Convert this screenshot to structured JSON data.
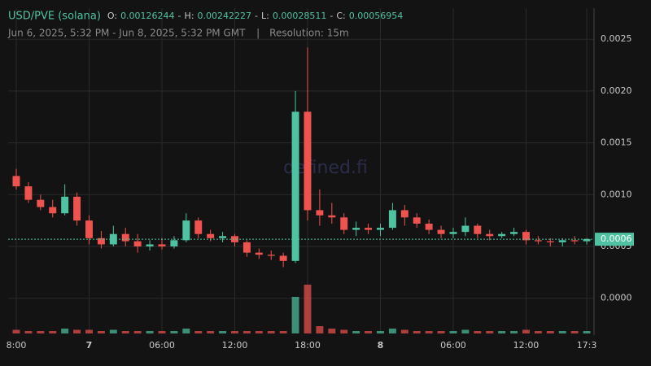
{
  "chart_data": {
    "type": "candlestick",
    "title": "USD/PVE (solana)",
    "ohlc": [
      {
        "label": "O:",
        "value": 0.00126244
      },
      {
        "label": "H:",
        "value": 0.00242227
      },
      {
        "label": "L:",
        "value": 0.00028511
      },
      {
        "label": "C:",
        "value": 0.00056954
      }
    ],
    "separator": "-",
    "subtitle": "Jun 6, 2025, 5:32 PM - Jun 8, 2025, 5:32 PM GMT",
    "divider": "|",
    "resolution": "Resolution: 15m",
    "watermark": "defined.fi",
    "price_label": "0.0006",
    "up_color": "#4fc3a1",
    "down_color": "#ef5350",
    "grid": true,
    "xlim": [
      17.33,
      65.6
    ],
    "xticks": [
      {
        "value": 18,
        "label": "8:00"
      },
      {
        "value": 24,
        "label": "7"
      },
      {
        "value": 30,
        "label": "06:00"
      },
      {
        "value": 36,
        "label": "12:00"
      },
      {
        "value": 42,
        "label": "18:00"
      },
      {
        "value": 48,
        "label": "8"
      },
      {
        "value": 54,
        "label": "06:00"
      },
      {
        "value": 60,
        "label": "12:00"
      },
      {
        "value": 65,
        "label": "17:3"
      }
    ],
    "ylim": [
      -0.00034,
      0.0028
    ],
    "yticks": [
      {
        "value": 0,
        "label": "0.0000"
      },
      {
        "value": 0.0005,
        "label": "0.0005"
      },
      {
        "value": 0.001,
        "label": "0.0010"
      },
      {
        "value": 0.0015,
        "label": "0.0015"
      },
      {
        "value": 0.002,
        "label": "0.0020"
      },
      {
        "value": 0.0025,
        "label": "0.0025"
      }
    ],
    "x": [
      18,
      19,
      20,
      21,
      22,
      23,
      24,
      25,
      26,
      27,
      28,
      29,
      30,
      31,
      32,
      33,
      34,
      35,
      36,
      37,
      38,
      39,
      40,
      41,
      42,
      43,
      44,
      45,
      46,
      47,
      48,
      49,
      50,
      51,
      52,
      53,
      54,
      55,
      56,
      57,
      58,
      59,
      60,
      61,
      62,
      63,
      64,
      65
    ],
    "open": [
      0.00118,
      0.00108,
      0.00095,
      0.00088,
      0.00082,
      0.00098,
      0.00075,
      0.00058,
      0.00052,
      0.00062,
      0.00055,
      0.0005,
      0.00052,
      0.0005,
      0.00056,
      0.00075,
      0.00062,
      0.00058,
      0.0006,
      0.00054,
      0.00044,
      0.00042,
      0.00041,
      0.00036,
      0.0018,
      0.00085,
      0.0008,
      0.00078,
      0.00066,
      0.00068,
      0.00066,
      0.00068,
      0.00085,
      0.00078,
      0.00072,
      0.00066,
      0.00062,
      0.00064,
      0.0007,
      0.00062,
      0.0006,
      0.00062,
      0.00064,
      0.00056,
      0.00055,
      0.00054,
      0.00056,
      0.00055
    ],
    "high": [
      0.00125,
      0.00112,
      0.001,
      0.00095,
      0.0011,
      0.00102,
      0.0008,
      0.00065,
      0.0007,
      0.00068,
      0.00062,
      0.00056,
      0.00058,
      0.0006,
      0.00082,
      0.00078,
      0.00066,
      0.00064,
      0.00062,
      0.00056,
      0.00048,
      0.00046,
      0.00044,
      0.002,
      0.00242,
      0.00105,
      0.00092,
      0.00082,
      0.00074,
      0.00072,
      0.00072,
      0.00092,
      0.0009,
      0.00082,
      0.00076,
      0.0007,
      0.00068,
      0.00078,
      0.00072,
      0.00066,
      0.00064,
      0.00068,
      0.00066,
      0.0006,
      0.00058,
      0.00058,
      0.0006,
      0.00058
    ],
    "low": [
      0.00105,
      0.00092,
      0.00085,
      0.00078,
      0.0008,
      0.0007,
      0.00052,
      0.00048,
      0.0005,
      0.0005,
      0.00044,
      0.00046,
      0.00047,
      0.00048,
      0.00054,
      0.00058,
      0.00055,
      0.00054,
      0.0005,
      0.0004,
      0.00038,
      0.00037,
      0.0003,
      0.00034,
      0.00075,
      0.0007,
      0.00072,
      0.00062,
      0.0006,
      0.00062,
      0.0006,
      0.00066,
      0.0007,
      0.00068,
      0.00062,
      0.00058,
      0.00058,
      0.0006,
      0.00058,
      0.00056,
      0.00058,
      0.0006,
      0.00052,
      0.00052,
      0.0005,
      0.0005,
      0.00052,
      0.00052
    ],
    "close": [
      0.00108,
      0.00095,
      0.00088,
      0.00082,
      0.00098,
      0.00075,
      0.00058,
      0.00052,
      0.00062,
      0.00055,
      0.0005,
      0.00052,
      0.0005,
      0.00056,
      0.00075,
      0.00062,
      0.00058,
      0.0006,
      0.00054,
      0.00044,
      0.00042,
      0.00041,
      0.00036,
      0.0018,
      0.00085,
      0.0008,
      0.00078,
      0.00066,
      0.00068,
      0.00066,
      0.00068,
      0.00085,
      0.00078,
      0.00072,
      0.00066,
      0.00062,
      0.00064,
      0.0007,
      0.00062,
      0.0006,
      0.00062,
      0.00064,
      0.00056,
      0.00055,
      0.00054,
      0.00056,
      0.00055,
      0.00057
    ],
    "volume": [
      3,
      2,
      2,
      2,
      4,
      3,
      3,
      2,
      3,
      2,
      2,
      2,
      2,
      2,
      4,
      2,
      2,
      2,
      2,
      2,
      2,
      2,
      2,
      30,
      40,
      6,
      4,
      3,
      2,
      2,
      2,
      4,
      3,
      2,
      2,
      2,
      2,
      3,
      2,
      2,
      2,
      2,
      3,
      2,
      2,
      2,
      2,
      2
    ]
  }
}
